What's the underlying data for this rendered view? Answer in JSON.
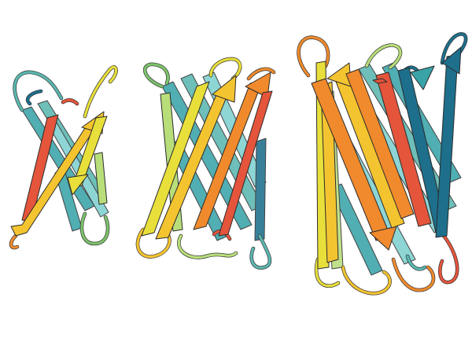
{
  "scene": {
    "subject": "beta-barrel-protein-ribbons",
    "background": "#ffffff",
    "palette": {
      "teal": "#3aa3a8",
      "dark-teal": "#1d6f8c",
      "green": "#7cc36a",
      "light-green": "#b8de7a",
      "yellow": "#e8df3a",
      "gold": "#f4c430",
      "orange": "#f08a2c",
      "red": "#e4553b",
      "cyan": "#7fd0d0"
    },
    "barrels": [
      {
        "name": "small-barrel",
        "strand_count": 8
      },
      {
        "name": "medium-barrel",
        "strand_count": 10
      },
      {
        "name": "large-barrel",
        "strand_count": 16
      }
    ]
  }
}
